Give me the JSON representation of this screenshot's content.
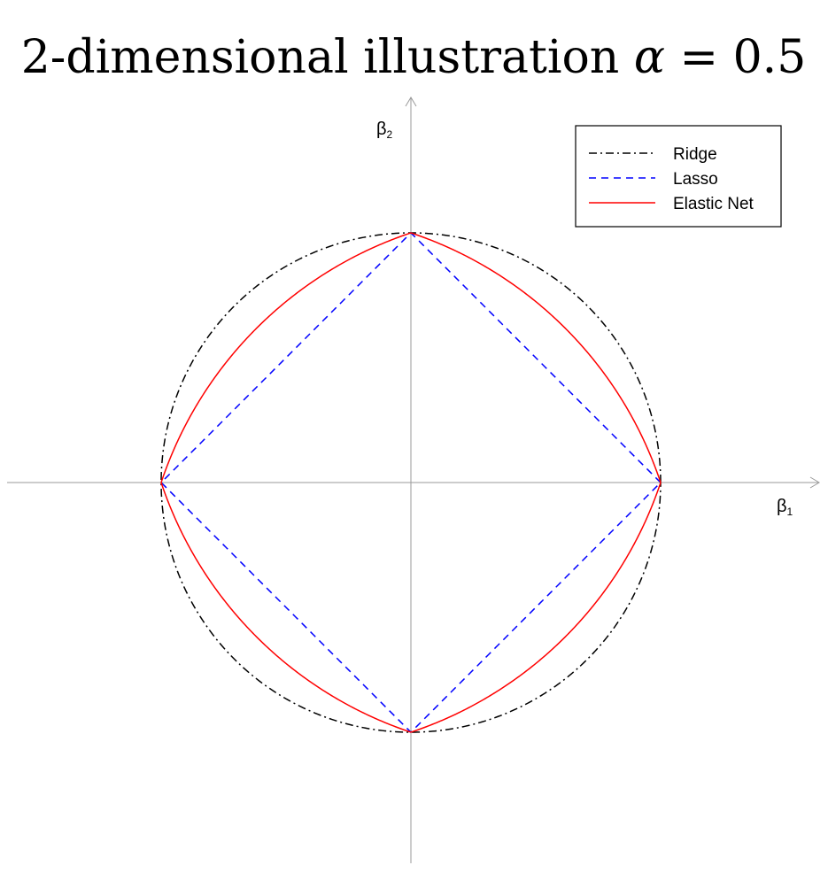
{
  "chart_data": {
    "type": "line",
    "title_prefix": "2-dimensional illustration ",
    "title_symbol": "α",
    "title_suffix": " = 0.5",
    "alpha": 0.5,
    "xlabel": {
      "symbol": "β",
      "subscript": "1"
    },
    "ylabel": {
      "symbol": "β",
      "subscript": "2"
    },
    "xlim": [
      -1.6,
      1.6
    ],
    "ylim": [
      -1.6,
      1.6
    ],
    "legend_position": "top-right",
    "grid": false,
    "series": [
      {
        "name": "Ridge",
        "constraint": "b1^2 + b2^2 = 1",
        "color": "#000000",
        "dash": "dash-dot"
      },
      {
        "name": "Lasso",
        "constraint": "|b1| + |b2| = 1",
        "color": "#0000ff",
        "dash": "dashed"
      },
      {
        "name": "Elastic Net",
        "constraint": "0.5(b1^2 + b2^2) + 0.5(|b1| + |b2|) = 1",
        "color": "#ff0000",
        "dash": "solid"
      }
    ],
    "vertices": [
      [
        1,
        0
      ],
      [
        0,
        1
      ],
      [
        -1,
        0
      ],
      [
        0,
        -1
      ]
    ]
  }
}
